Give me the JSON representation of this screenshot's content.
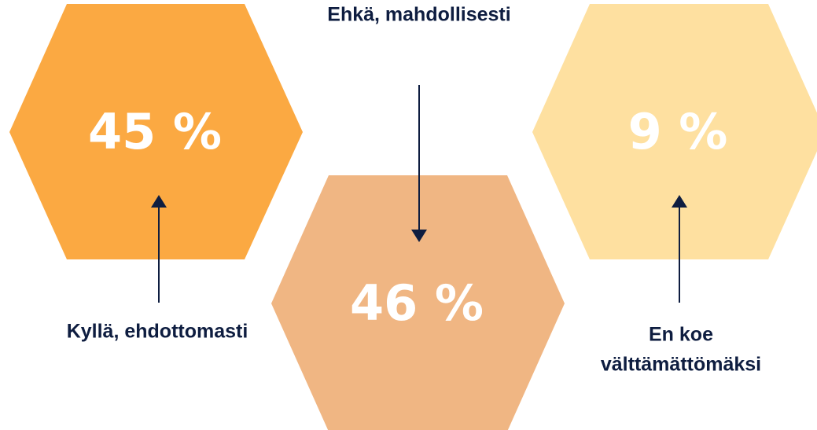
{
  "items": [
    {
      "value": "45 %",
      "label_lines": [
        "Kyllä, ehdottomasti"
      ]
    },
    {
      "value": "46 %",
      "label_lines": [
        "Ehkä, mahdollisesti"
      ]
    },
    {
      "value": "9 %",
      "label_lines": [
        "En koe",
        "välttämättömäksi"
      ]
    }
  ]
}
